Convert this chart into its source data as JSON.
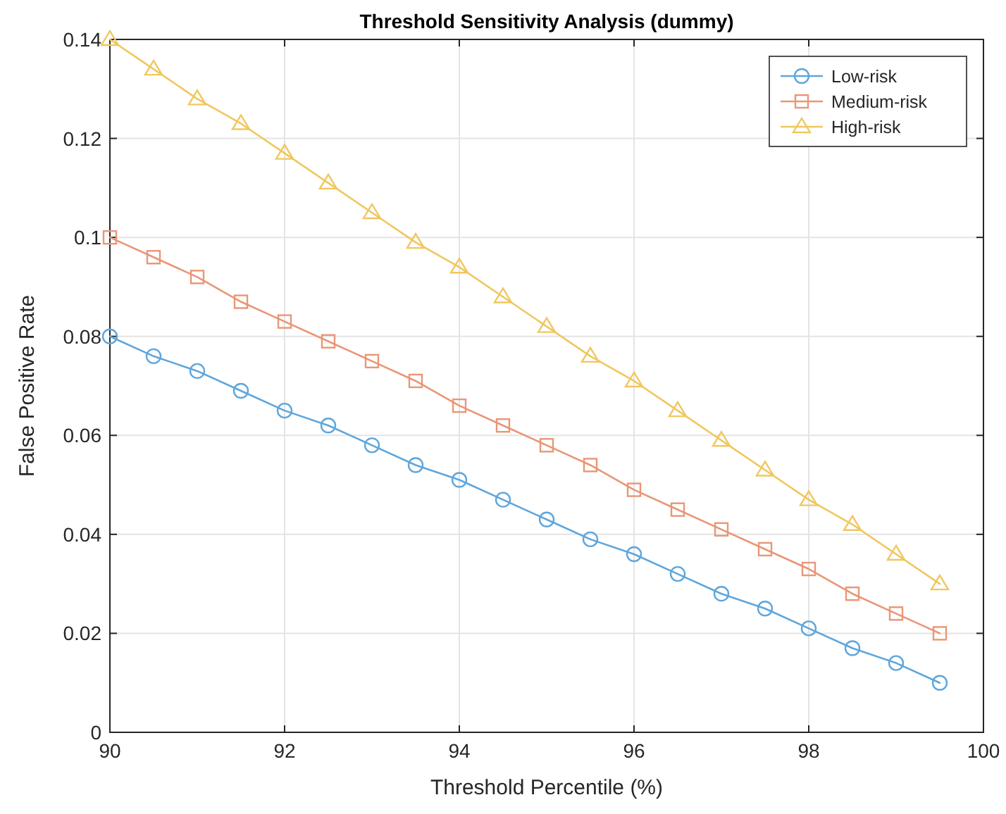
{
  "chart_data": {
    "type": "line",
    "title": "Threshold Sensitivity Analysis (dummy)",
    "xlabel": "Threshold Percentile (%)",
    "ylabel": "False Positive Rate",
    "x": [
      90,
      90.5,
      91,
      91.5,
      92,
      92.5,
      93,
      93.5,
      94,
      94.5,
      95,
      95.5,
      96,
      96.5,
      97,
      97.5,
      98,
      98.5,
      99,
      99.5
    ],
    "series": [
      {
        "name": "Low-risk",
        "color": "#5fa6dc",
        "marker": "circle",
        "values": [
          0.08,
          0.076,
          0.073,
          0.069,
          0.065,
          0.062,
          0.058,
          0.054,
          0.051,
          0.047,
          0.043,
          0.039,
          0.036,
          0.032,
          0.028,
          0.025,
          0.021,
          0.017,
          0.014,
          0.01
        ]
      },
      {
        "name": "Medium-risk",
        "color": "#e99676",
        "marker": "square",
        "values": [
          0.1,
          0.096,
          0.092,
          0.087,
          0.083,
          0.079,
          0.075,
          0.071,
          0.066,
          0.062,
          0.058,
          0.054,
          0.049,
          0.045,
          0.041,
          0.037,
          0.033,
          0.028,
          0.024,
          0.02
        ]
      },
      {
        "name": "High-risk",
        "color": "#f0c75e",
        "marker": "triangle",
        "values": [
          0.14,
          0.134,
          0.128,
          0.123,
          0.117,
          0.111,
          0.105,
          0.099,
          0.094,
          0.088,
          0.082,
          0.076,
          0.071,
          0.065,
          0.059,
          0.053,
          0.047,
          0.042,
          0.036,
          0.03
        ]
      }
    ],
    "xlim": [
      90,
      100
    ],
    "xticks": [
      90,
      92,
      94,
      96,
      98,
      100
    ],
    "ylim": [
      0,
      0.14
    ],
    "yticks": [
      0,
      0.02,
      0.04,
      0.06,
      0.08,
      0.1,
      0.12,
      0.14
    ],
    "grid": true,
    "legend": "top right",
    "line_style": "solid"
  }
}
